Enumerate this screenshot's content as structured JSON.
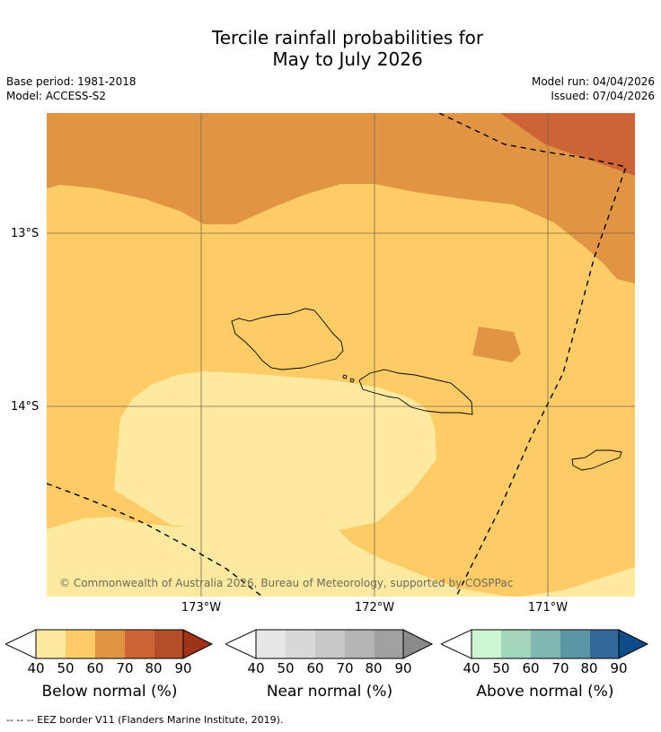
{
  "title_line1": "Tercile rainfall probabilities for",
  "title_line2": "May to July 2026",
  "base_period": "Base period: 1981-2018",
  "model": "Model: ACCESS-S2",
  "model_run": "Model run: 04/04/2026",
  "issued": "Issued: 07/04/2026",
  "copyright": "© Commonwealth of Australia 2026, Bureau of Meteorology, supported by COSPPac",
  "lat_ticks": [
    "13°S",
    "14°S"
  ],
  "lon_ticks": [
    "173°W",
    "172°W",
    "171°W"
  ],
  "regions": [
    {
      "label": "Below normal 40-50%",
      "color": "#fdeaa0"
    },
    {
      "label": "Below normal 50-60%",
      "color": "#fdcc66"
    },
    {
      "label": "Below normal 60-70%",
      "color": "#e09444"
    },
    {
      "label": "Below normal 70-80%",
      "color": "#cd6435"
    }
  ],
  "colorbars": [
    {
      "title": "Below normal (%)",
      "colors": [
        "#fdeaa0",
        "#fdcc66",
        "#e09444",
        "#cd6435",
        "#b34e29",
        "#9d3418"
      ],
      "labels": [
        "40",
        "50",
        "60",
        "70",
        "80",
        "90"
      ]
    },
    {
      "title": "Near normal (%)",
      "colors": [
        "#e6e6e6",
        "#d8d8d8",
        "#c8c8c8",
        "#b4b4b4",
        "#a0a0a0",
        "#8a8a8a"
      ],
      "labels": [
        "40",
        "50",
        "60",
        "70",
        "80",
        "90"
      ]
    },
    {
      "title": "Above normal (%)",
      "colors": [
        "#ccf6cf",
        "#a2d5bc",
        "#80b8b0",
        "#5a96a4",
        "#316a9a",
        "#0d4b8a"
      ],
      "labels": [
        "40",
        "50",
        "60",
        "70",
        "80",
        "90"
      ]
    }
  ],
  "footer": "-- -- -- EEZ border V11 (Flanders Marine Institute, 2019)."
}
